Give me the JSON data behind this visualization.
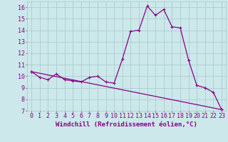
{
  "title": "",
  "xlabel": "Windchill (Refroidissement éolien,°C)",
  "ylabel": "",
  "background_color": "#cce8ea",
  "grid_color": "#aacdd0",
  "line_color": "#880088",
  "marker": "+",
  "xlim": [
    -0.5,
    23.5
  ],
  "ylim": [
    7,
    16.5
  ],
  "yticks": [
    7,
    8,
    9,
    10,
    11,
    12,
    13,
    14,
    15,
    16
  ],
  "xticks": [
    0,
    1,
    2,
    3,
    4,
    5,
    6,
    7,
    8,
    9,
    10,
    11,
    12,
    13,
    14,
    15,
    16,
    17,
    18,
    19,
    20,
    21,
    22,
    23
  ],
  "series1_x": [
    0,
    1,
    2,
    3,
    4,
    5,
    6,
    7,
    8,
    9,
    10,
    11,
    12,
    13,
    14,
    15,
    16,
    17,
    18,
    19,
    20,
    21,
    22,
    23
  ],
  "series1_y": [
    10.4,
    9.9,
    9.7,
    10.2,
    9.7,
    9.6,
    9.5,
    9.9,
    10.0,
    9.5,
    9.4,
    11.5,
    13.9,
    14.0,
    16.1,
    15.3,
    15.8,
    14.3,
    14.2,
    11.4,
    9.2,
    9.0,
    8.6,
    7.1
  ],
  "series2_x": [
    0,
    23
  ],
  "series2_y": [
    10.4,
    7.1
  ],
  "line_width": 0.9,
  "marker_size": 3,
  "font_color": "#880088",
  "font_size_tick": 6,
  "font_size_label": 6.5
}
